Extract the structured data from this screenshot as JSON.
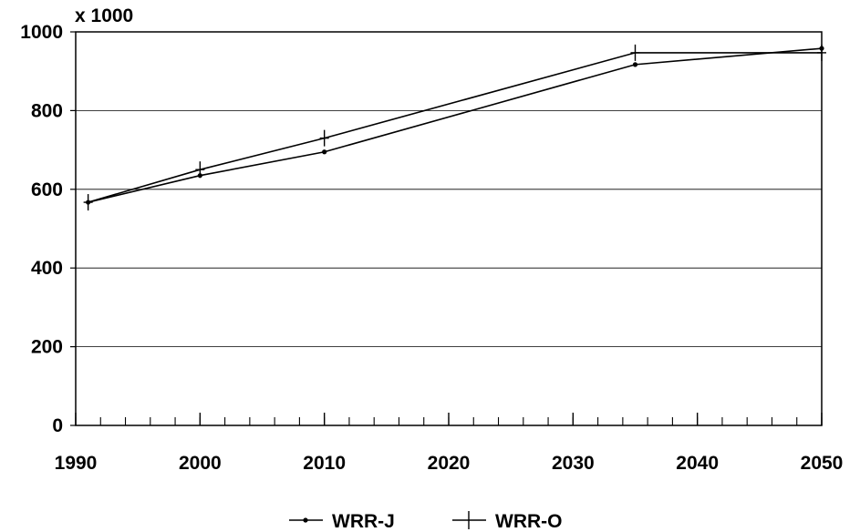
{
  "chart_data": {
    "type": "line",
    "title": "",
    "xlabel": "",
    "ylabel": "",
    "unit_label": "x 1000",
    "x_ticks": [
      1990,
      2000,
      2010,
      2020,
      2030,
      2040,
      2050
    ],
    "x_tick_labels": [
      "1990",
      "2000",
      "2010",
      "2020",
      "2030",
      "2040",
      "2050"
    ],
    "y_ticks": [
      0,
      200,
      400,
      600,
      800,
      1000
    ],
    "y_tick_labels": [
      "0",
      "200",
      "400",
      "600",
      "800",
      "1000"
    ],
    "xlim": [
      1990,
      2050
    ],
    "ylim": [
      0,
      1000
    ],
    "grid": "horizontal",
    "legend_position": "bottom-center",
    "series": [
      {
        "name": "WRR-J",
        "marker": "dot",
        "color": "#000000",
        "x": [
          1991,
          2000,
          2010,
          2035,
          2050
        ],
        "y": [
          567,
          635,
          695,
          917,
          958
        ]
      },
      {
        "name": "WRR-O",
        "marker": "plus",
        "color": "#000000",
        "x": [
          1991,
          2000,
          2010,
          2035,
          2050
        ],
        "y": [
          567,
          650,
          730,
          947,
          947
        ]
      }
    ]
  }
}
